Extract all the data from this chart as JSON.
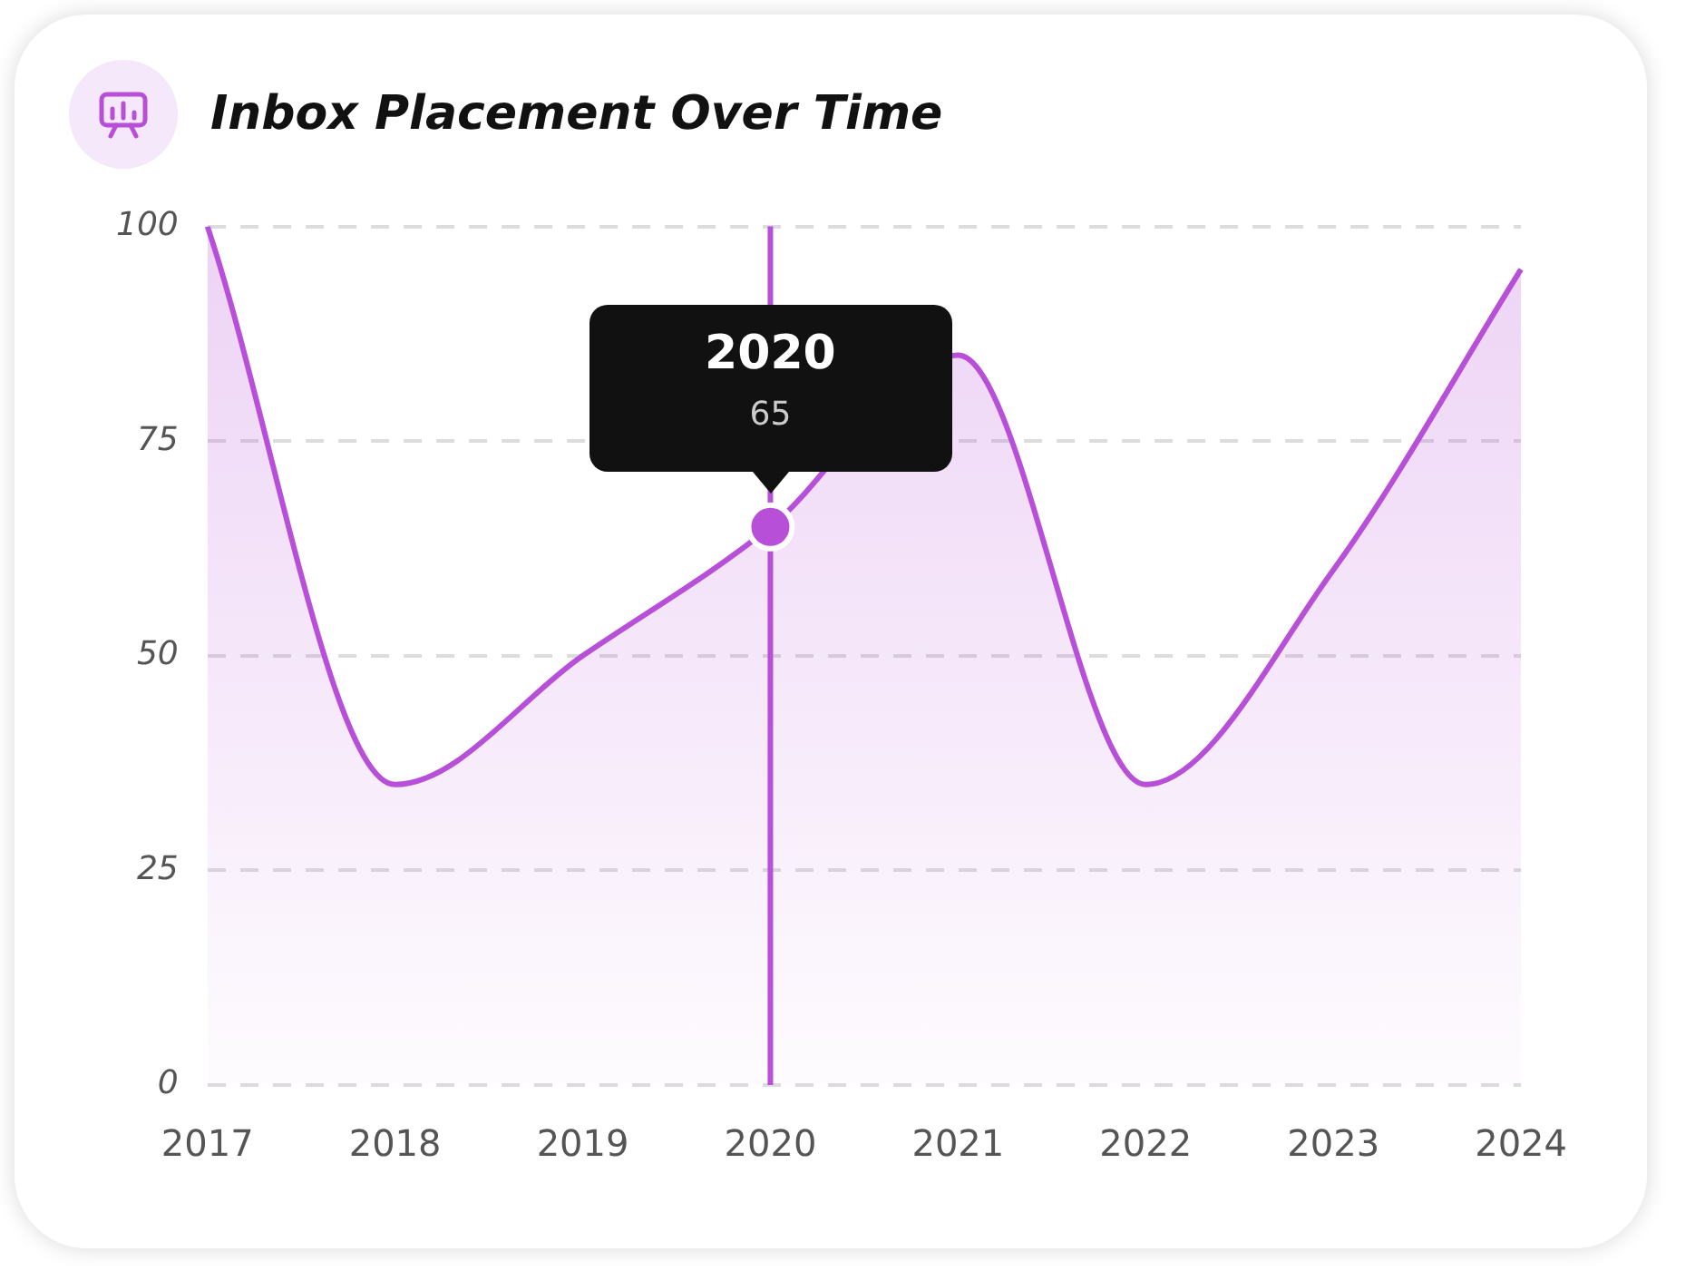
{
  "chart_data": {
    "type": "area",
    "title": "Inbox Placement Over Time",
    "categories": [
      "2017",
      "2018",
      "2019",
      "2020",
      "2021",
      "2022",
      "2023",
      "2024"
    ],
    "series": [
      {
        "color": "#b84fd9",
        "values": [
          100,
          35,
          50,
          65,
          85,
          35,
          60,
          95
        ]
      }
    ],
    "ylim": [
      0,
      100
    ],
    "ref_lines": [
      {
        "axis": "x",
        "value": "2020",
        "color": "#b84fd9"
      }
    ],
    "yticks": [
      0,
      25,
      50,
      75,
      100
    ],
    "grid": "y",
    "legend": false,
    "marker": "none",
    "annotations": [
      {
        "text": "65",
        "x": "2020",
        "y": 65
      }
    ]
  }
}
